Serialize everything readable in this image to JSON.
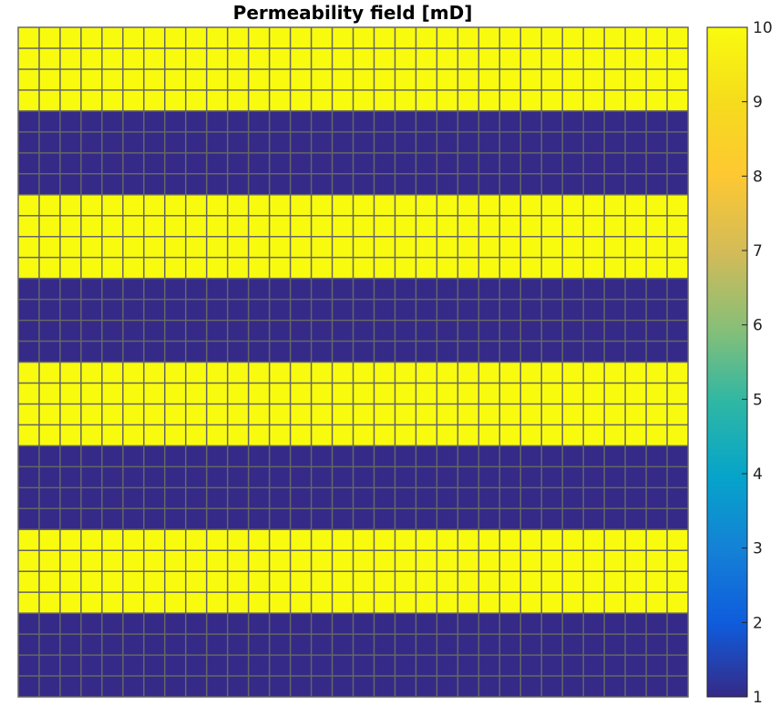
{
  "chart_data": {
    "type": "heatmap",
    "title": "Permeability field [mD]",
    "grid": {
      "columns": 32,
      "rows": 32,
      "gridlines": true
    },
    "row_values": [
      10,
      10,
      10,
      10,
      1,
      1,
      1,
      1,
      10,
      10,
      10,
      10,
      1,
      1,
      1,
      1,
      10,
      10,
      10,
      10,
      1,
      1,
      1,
      1,
      10,
      10,
      10,
      10,
      1,
      1,
      1,
      1
    ],
    "colorbar": {
      "range": [
        1,
        10
      ],
      "ticks": [
        1,
        2,
        3,
        4,
        5,
        6,
        7,
        8,
        9,
        10
      ],
      "placement": "right",
      "colormap": "parula"
    },
    "colors": {
      "high": "#f9fb0e",
      "low": "#352a87",
      "gridline": "#666666",
      "frame": "#222222"
    }
  }
}
